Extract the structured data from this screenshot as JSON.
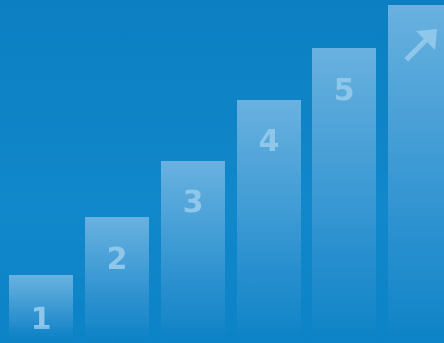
{
  "steps": [
    {
      "label": "1"
    },
    {
      "label": "2"
    },
    {
      "label": "3"
    },
    {
      "label": "4"
    },
    {
      "label": "5"
    }
  ],
  "top_icon": "arrow-up-right-icon",
  "colors": {
    "background": "#0f86c8",
    "bar": "#6eb4e1",
    "label": "#8fc7ea"
  }
}
